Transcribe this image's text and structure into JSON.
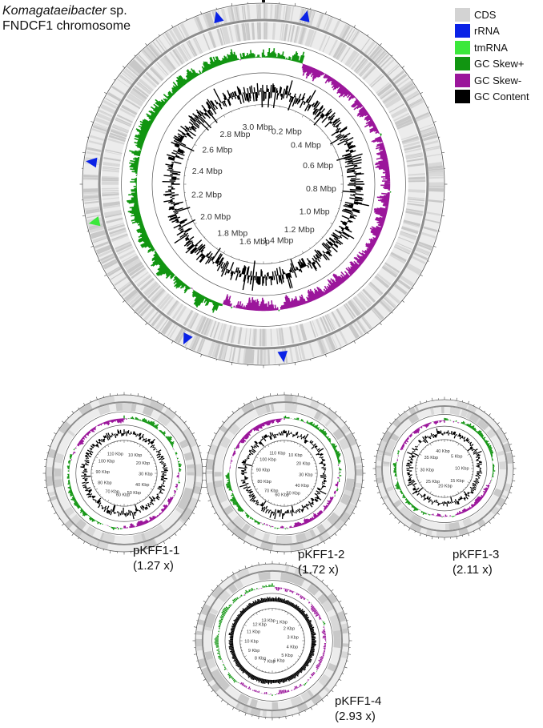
{
  "title": {
    "species_italic": "Komagataeibacter",
    "species_suffix": " sp.",
    "line2": "FNDCF1 chromosome"
  },
  "legend": [
    {
      "label": "CDS",
      "color": "#d3d3d3"
    },
    {
      "label": "rRNA",
      "color": "#0a22e6"
    },
    {
      "label": "tmRNA",
      "color": "#3be83b"
    },
    {
      "label": "GC Skew+",
      "color": "#119511"
    },
    {
      "label": "GC Skew-",
      "color": "#9b169b"
    },
    {
      "label": "GC Content",
      "color": "#000000"
    }
  ],
  "genomes": [
    {
      "id": "chromosome",
      "name": "",
      "coverage": "",
      "tick_labels": [
        "0.2 Mbp",
        "0.4 Mbp",
        "0.6 Mbp",
        "0.8 Mbp",
        "1.0 Mbp",
        "1.2 Mbp",
        "1.4 Mbp",
        "1.6 Mbp",
        "1.8 Mbp",
        "2.0 Mbp",
        "2.2 Mbp",
        "2.4 Mbp",
        "2.6 Mbp",
        "2.8 Mbp",
        "3.0 Mbp"
      ],
      "tick_values": [
        0.2,
        0.4,
        0.6,
        0.8,
        1.0,
        1.2,
        1.4,
        1.6,
        1.8,
        2.0,
        2.2,
        2.4,
        2.6,
        2.8,
        3.0
      ],
      "unit_total": 3.05
    },
    {
      "id": "pKFF1-1",
      "name": "pKFF1-1",
      "coverage": "(1.27 x)",
      "tick_labels": [
        "10 Kbp",
        "20 Kbp",
        "30 Kbp",
        "40 Kbp",
        "50 Kbp",
        "60 Kbp",
        "70 Kbp",
        "80 Kbp",
        "90 Kbp",
        "100 Kbp",
        "110 Kbp"
      ],
      "tick_values": [
        10,
        20,
        30,
        40,
        50,
        60,
        70,
        80,
        90,
        100,
        110
      ],
      "unit_total": 118
    },
    {
      "id": "pKFF1-2",
      "name": "pKFF1-2",
      "coverage": "(1.72 x)",
      "tick_labels": [
        "10 Kbp",
        "20 Kbp",
        "30 Kbp",
        "40 Kbp",
        "50 Kbp",
        "60 Kbp",
        "70 Kbp",
        "80 Kbp",
        "90 Kbp",
        "100 Kbp",
        "110 Kbp"
      ],
      "tick_values": [
        10,
        20,
        30,
        40,
        50,
        60,
        70,
        80,
        90,
        100,
        110
      ],
      "unit_total": 116
    },
    {
      "id": "pKFF1-3",
      "name": "pKFF1-3",
      "coverage": "(2.11 x)",
      "tick_labels": [
        "5 Kbp",
        "10 Kbp",
        "15 Kbp",
        "20 Kbp",
        "25 Kbp",
        "30 Kbp",
        "35 Kbp",
        "40 Kbp"
      ],
      "tick_values": [
        5,
        10,
        15,
        20,
        25,
        30,
        35,
        40
      ],
      "unit_total": 40.6
    },
    {
      "id": "pKFF1-4",
      "name": "pKFF1-4",
      "coverage": "(2.93 x)",
      "tick_labels": [
        "1 Kbp",
        "2 Kbp",
        "3 Kbp",
        "4 Kbp",
        "5 Kbp",
        "6 Kbp",
        "7 Kbp",
        "8 Kbp",
        "9 Kbp",
        "10 Kbp",
        "11 Kbp",
        "12 Kbp",
        "13 Kbp"
      ],
      "tick_values": [
        1,
        2,
        3,
        4,
        5,
        6,
        7,
        8,
        9,
        10,
        11,
        12,
        13
      ],
      "unit_total": 13.4
    }
  ],
  "chromosome_features": {
    "rRNA_positions_mbp": [
      0.12,
      2.92,
      2.35,
      1.75,
      1.47
    ],
    "tmRNA_positions_mbp": [
      2.18
    ]
  }
}
